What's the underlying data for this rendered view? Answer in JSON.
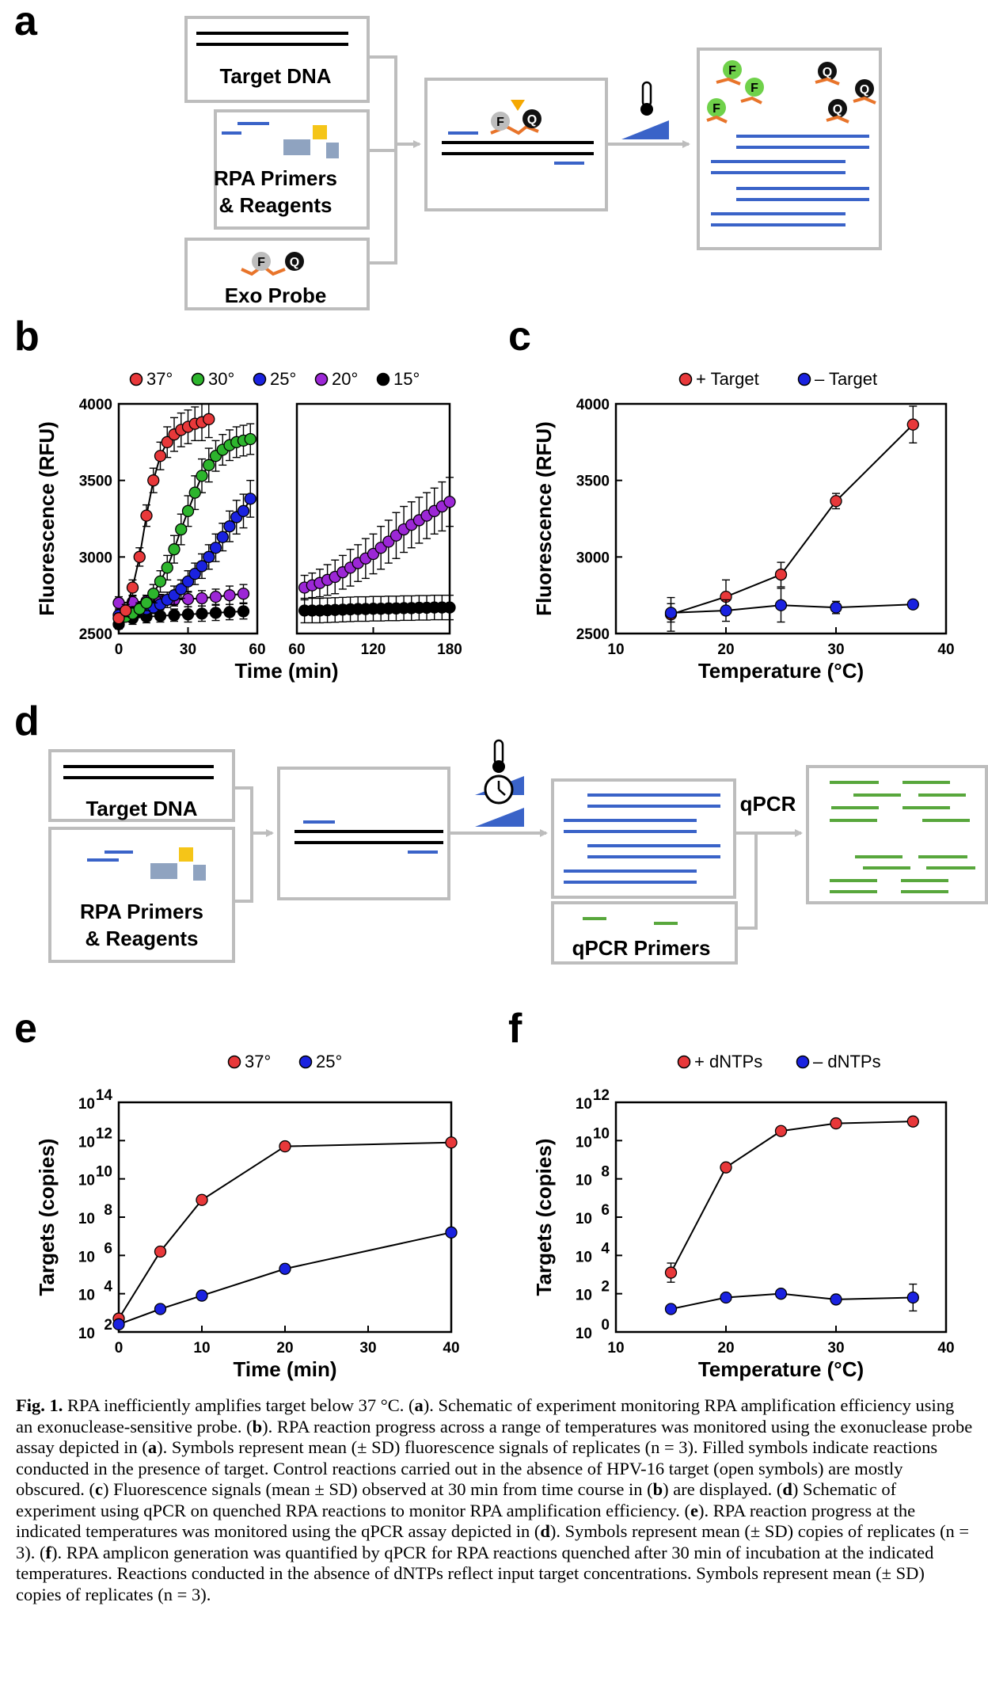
{
  "panels": {
    "a": "a",
    "b": "b",
    "c": "c",
    "d": "d",
    "e": "e",
    "f": "f"
  },
  "schematic_a": {
    "target_dna": "Target DNA",
    "rpa_line1": "RPA Primers",
    "rpa_line2": "& Reagents",
    "exo_probe": "Exo Probe",
    "fluor": "F",
    "quench": "Q"
  },
  "schematic_d": {
    "target_dna": "Target DNA",
    "rpa_line1": "RPA Primers",
    "rpa_line2": "& Reagents",
    "qpcr_primers": "qPCR Primers",
    "qpcr": "qPCR"
  },
  "colors": {
    "red": "#e8383a",
    "green": "#2db52d",
    "blue": "#1a22e0",
    "purple": "#9c27d6",
    "black": "#000000",
    "dna_blue": "#3a63c8",
    "dna_green": "#58a73c",
    "orange": "#e8742a",
    "yellow": "#f5c518"
  },
  "chart_data": [
    {
      "id": "b",
      "type": "scatter",
      "xlabel": "Time (min)",
      "ylabel": "Fluorescence (RFU)",
      "ylim": [
        2500,
        4000
      ],
      "yticks": [
        2500,
        3000,
        3500,
        4000
      ],
      "segments": [
        {
          "xlim": [
            0,
            60
          ],
          "xticks": [
            0,
            30,
            60
          ]
        },
        {
          "xlim": [
            60,
            180
          ],
          "xticks": [
            60,
            120,
            180
          ]
        }
      ],
      "legend": [
        {
          "label": "37°",
          "color": "#e8383a"
        },
        {
          "label": "30°",
          "color": "#2db52d"
        },
        {
          "label": "25°",
          "color": "#1a22e0"
        },
        {
          "label": "20°",
          "color": "#9c27d6"
        },
        {
          "label": "15°",
          "color": "#000000"
        }
      ],
      "series": [
        {
          "name": "37°",
          "color": "#e8383a",
          "x": [
            0,
            3,
            6,
            9,
            12,
            15,
            18,
            21,
            24,
            27,
            30,
            33,
            36,
            39
          ],
          "y": [
            2600,
            2650,
            2800,
            3000,
            3270,
            3500,
            3660,
            3750,
            3800,
            3830,
            3850,
            3870,
            3880,
            3900
          ],
          "err": [
            30,
            40,
            50,
            60,
            70,
            80,
            90,
            100,
            110,
            110,
            110,
            110,
            120,
            120
          ]
        },
        {
          "name": "30°",
          "color": "#2db52d",
          "x": [
            0,
            3,
            6,
            9,
            12,
            15,
            18,
            21,
            24,
            27,
            30,
            33,
            36,
            39,
            42,
            45,
            48,
            51,
            54,
            57
          ],
          "y": [
            2600,
            2610,
            2630,
            2660,
            2700,
            2760,
            2840,
            2930,
            3050,
            3180,
            3300,
            3420,
            3530,
            3600,
            3660,
            3700,
            3730,
            3750,
            3760,
            3770
          ],
          "err": [
            30,
            30,
            40,
            40,
            50,
            60,
            70,
            80,
            90,
            100,
            100,
            110,
            110,
            110,
            100,
            100,
            100,
            100,
            100,
            100
          ]
        },
        {
          "name": "25°",
          "color": "#1a22e0",
          "x": [
            0,
            3,
            6,
            9,
            12,
            15,
            18,
            21,
            24,
            27,
            30,
            33,
            36,
            39,
            42,
            45,
            48,
            51,
            54,
            57
          ],
          "y": [
            2620,
            2630,
            2640,
            2650,
            2660,
            2670,
            2690,
            2720,
            2750,
            2790,
            2840,
            2890,
            2940,
            3000,
            3060,
            3130,
            3200,
            3260,
            3300,
            3380
          ],
          "err": [
            30,
            30,
            30,
            40,
            40,
            40,
            50,
            50,
            60,
            60,
            70,
            70,
            80,
            80,
            90,
            90,
            100,
            110,
            110,
            120
          ]
        },
        {
          "name": "20°",
          "color": "#9c27d6",
          "x": [
            0,
            6,
            12,
            18,
            24,
            30,
            36,
            42,
            48,
            54,
            66,
            72,
            78,
            84,
            90,
            96,
            102,
            108,
            114,
            120,
            126,
            132,
            138,
            144,
            150,
            156,
            162,
            168,
            174,
            180
          ],
          "y": [
            2700,
            2705,
            2710,
            2715,
            2720,
            2725,
            2730,
            2740,
            2750,
            2760,
            2800,
            2815,
            2830,
            2850,
            2870,
            2900,
            2930,
            2960,
            2990,
            3020,
            3060,
            3100,
            3140,
            3180,
            3210,
            3240,
            3270,
            3300,
            3330,
            3360
          ],
          "err": [
            40,
            40,
            40,
            40,
            40,
            50,
            50,
            50,
            60,
            60,
            80,
            80,
            90,
            100,
            110,
            110,
            120,
            120,
            130,
            130,
            140,
            140,
            150,
            150,
            150,
            150,
            150,
            150,
            160,
            160
          ]
        },
        {
          "name": "15°",
          "color": "#000000",
          "x": [
            0,
            6,
            12,
            18,
            24,
            30,
            36,
            42,
            48,
            54,
            66,
            72,
            78,
            84,
            90,
            96,
            102,
            108,
            114,
            120,
            126,
            132,
            138,
            144,
            150,
            156,
            162,
            168,
            174,
            180
          ],
          "y": [
            2560,
            2600,
            2610,
            2615,
            2620,
            2625,
            2630,
            2635,
            2640,
            2645,
            2650,
            2650,
            2650,
            2652,
            2654,
            2656,
            2658,
            2660,
            2660,
            2662,
            2662,
            2664,
            2664,
            2666,
            2666,
            2668,
            2668,
            2670,
            2670,
            2670
          ],
          "err": [
            30,
            40,
            40,
            40,
            40,
            50,
            50,
            50,
            50,
            50,
            80,
            80,
            80,
            80,
            80,
            80,
            80,
            80,
            80,
            80,
            80,
            80,
            80,
            80,
            80,
            80,
            80,
            80,
            80,
            80
          ]
        }
      ]
    },
    {
      "id": "c",
      "type": "line",
      "xlabel": "Temperature (°C)",
      "ylabel": "Fluorescence (RFU)",
      "xlim": [
        10,
        40
      ],
      "xticks": [
        10,
        20,
        30,
        40
      ],
      "ylim": [
        2500,
        4000
      ],
      "yticks": [
        2500,
        3000,
        3500,
        4000
      ],
      "legend": [
        {
          "label": "+ Target",
          "color": "#e8383a"
        },
        {
          "label": "– Target",
          "color": "#1a22e0"
        }
      ],
      "series": [
        {
          "name": "+ Target",
          "color": "#e8383a",
          "x": [
            15,
            20,
            25,
            30,
            37
          ],
          "y": [
            2625,
            2740,
            2885,
            3365,
            3865
          ],
          "err": [
            110,
            110,
            80,
            50,
            120
          ]
        },
        {
          "name": "– Target",
          "color": "#1a22e0",
          "x": [
            15,
            20,
            25,
            30,
            37
          ],
          "y": [
            2635,
            2650,
            2685,
            2670,
            2690
          ],
          "err": [
            60,
            70,
            110,
            40,
            20
          ]
        }
      ]
    },
    {
      "id": "e",
      "type": "line",
      "xlabel": "Time (min)",
      "ylabel": "Targets (copies)",
      "xlim": [
        0,
        40
      ],
      "xticks": [
        0,
        10,
        20,
        30,
        40
      ],
      "yscale": "log",
      "ylim_exp": [
        2,
        14
      ],
      "yticks_exp": [
        2,
        4,
        6,
        8,
        10,
        12,
        14
      ],
      "ytick_base": "10",
      "legend": [
        {
          "label": "37°",
          "color": "#e8383a"
        },
        {
          "label": "25°",
          "color": "#1a22e0"
        }
      ],
      "series": [
        {
          "name": "37°",
          "color": "#e8383a",
          "x": [
            0,
            5,
            10,
            20,
            40
          ],
          "log10_y": [
            2.7,
            6.2,
            8.9,
            11.7,
            11.9
          ]
        },
        {
          "name": "25°",
          "color": "#1a22e0",
          "x": [
            0,
            5,
            10,
            20,
            40
          ],
          "log10_y": [
            2.4,
            3.2,
            3.9,
            5.3,
            7.2
          ]
        }
      ]
    },
    {
      "id": "f",
      "type": "line",
      "xlabel": "Temperature (°C)",
      "ylabel": "Targets (copies)",
      "xlim": [
        10,
        40
      ],
      "xticks": [
        10,
        20,
        30,
        40
      ],
      "yscale": "log",
      "ylim_exp": [
        0,
        12
      ],
      "yticks_exp": [
        0,
        2,
        4,
        6,
        8,
        10,
        12
      ],
      "ytick_base": "10",
      "legend": [
        {
          "label": "+ dNTPs",
          "color": "#e8383a"
        },
        {
          "label": "– dNTPs",
          "color": "#1a22e0"
        }
      ],
      "series": [
        {
          "name": "+ dNTPs",
          "color": "#e8383a",
          "x": [
            15,
            20,
            25,
            30,
            37
          ],
          "log10_y": [
            3.1,
            8.6,
            10.5,
            10.9,
            11.0
          ],
          "log10_err": [
            0.5,
            0.1,
            0.1,
            0.1,
            0.1
          ]
        },
        {
          "name": "– dNTPs",
          "color": "#1a22e0",
          "x": [
            15,
            20,
            25,
            30,
            37
          ],
          "log10_y": [
            1.2,
            1.8,
            2.0,
            1.7,
            1.8
          ],
          "log10_err": [
            0.1,
            0.1,
            0.1,
            0.1,
            0.7
          ]
        }
      ]
    }
  ],
  "caption": {
    "label": "Fig. 1.",
    "t1": "  RPA inefficiently amplifies target below 37 °C. (",
    "a1": "a",
    "t2": "). Schematic of experiment monitoring RPA amplification efficiency using an exonuclease-sensitive probe. (",
    "b1": "b",
    "t3": "). RPA reaction progress across a range of temperatures was monitored using the exonuclease probe assay depicted in (",
    "a2": "a",
    "t4": "). Symbols represent mean (± SD) fluorescence signals of replicates (n = 3). Filled symbols indicate reactions conducted in the presence of target. Control reactions carried out in the absence of HPV-16 target (open symbols) are mostly obscured. (",
    "c1": "c",
    "t5": ") Fluorescence signals (mean ± SD) observed at 30 min from time course in (",
    "b2": "b",
    "t6": ") are displayed. (",
    "d1": "d",
    "t7": ") Schematic of experiment using qPCR on quenched RPA reactions to monitor RPA amplification efficiency. (",
    "e1": "e",
    "t8": "). RPA reaction progress at the indicated temperatures was monitored using the qPCR assay depicted in (",
    "d2": "d",
    "t9": "). Symbols represent mean (± SD) copies of replicates (n = 3). (",
    "f1": "f",
    "t10": "). RPA amplicon generation was quantified by qPCR for RPA reactions quenched after 30 min of incubation at the indicated temperatures. Reactions conducted in the absence of dNTPs reflect input target concentrations. Symbols represent mean (± SD) copies of replicates (n = 3)."
  }
}
